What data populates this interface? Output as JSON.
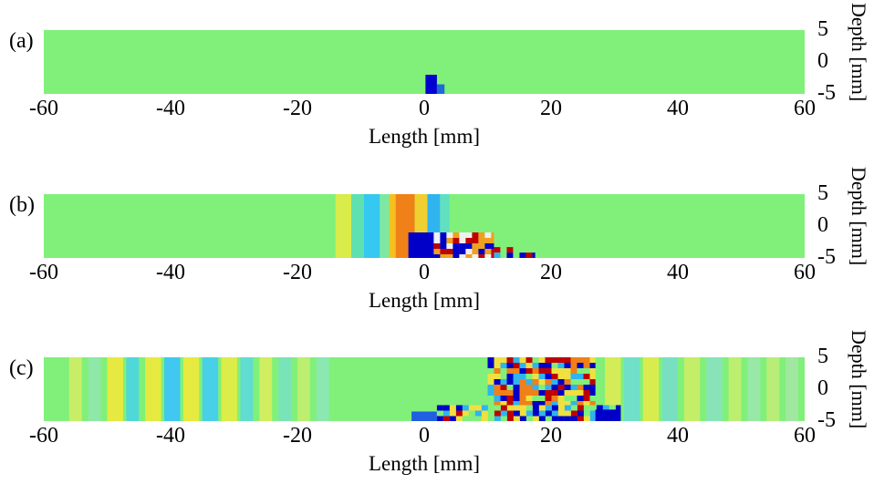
{
  "chart_data": [
    {
      "type": "heatmap",
      "panel_label": "(a)",
      "xlabel": "Length [mm]",
      "ylabel": "Depth [mm]",
      "xlim": [
        -60,
        60
      ],
      "ylim": [
        -5,
        5
      ],
      "xticks": [
        "-60",
        "-40",
        "-20",
        "0",
        "20",
        "40",
        "60"
      ],
      "yticks": [
        "5",
        "0",
        "-5"
      ],
      "colormap": "jet",
      "background_color": "#80f07a",
      "features": [
        {
          "kind": "block",
          "x0": 0.2,
          "x1": 2.0,
          "y0": -5,
          "y1": -2,
          "color": "#0000d0"
        },
        {
          "kind": "block",
          "x0": 2.0,
          "x1": 3.2,
          "y0": -5,
          "y1": -3.5,
          "color": "#1e6ad8"
        }
      ]
    },
    {
      "type": "heatmap",
      "panel_label": "(b)",
      "xlabel": "Length [mm]",
      "ylabel": "Depth [mm]",
      "xlim": [
        -60,
        60
      ],
      "ylim": [
        -5,
        5
      ],
      "xticks": [
        "-60",
        "-40",
        "-20",
        "0",
        "20",
        "40",
        "60"
      ],
      "yticks": [
        "5",
        "0",
        "-5"
      ],
      "colormap": "jet",
      "background_color": "#80f07a",
      "bands": [
        {
          "x0": -14,
          "x1": -11.5,
          "color": "#d9ec4a"
        },
        {
          "x0": -11.5,
          "x1": -9.5,
          "color": "#5fe0b0"
        },
        {
          "x0": -9.5,
          "x1": -7,
          "color": "#35c8f0"
        },
        {
          "x0": -7,
          "x1": -5.5,
          "color": "#7fe8a0"
        },
        {
          "x0": -5.5,
          "x1": -4.5,
          "color": "#f6c020"
        },
        {
          "x0": -4.5,
          "x1": -1.5,
          "color": "#f08018"
        },
        {
          "x0": -1.5,
          "x1": 0.5,
          "color": "#f0d030"
        },
        {
          "x0": 0.5,
          "x1": 2.5,
          "color": "#2fb4f0"
        },
        {
          "x0": 2.5,
          "x1": 4,
          "color": "#60e0c0"
        }
      ],
      "features": [
        {
          "kind": "block",
          "x0": -2.5,
          "x1": 1.5,
          "y0": -5,
          "y1": -1,
          "color": "#0000c8"
        },
        {
          "kind": "checker",
          "x0": 1.5,
          "x1": 11,
          "y0": -5,
          "y1": -1,
          "colors": [
            "#c00000",
            "#0000c8",
            "#f0f0f0",
            "#f0a020"
          ]
        },
        {
          "kind": "checker",
          "x0": 11,
          "x1": 17.5,
          "y0": -5,
          "y1": -3.3,
          "colors": [
            "#0000c8",
            "#80f07a",
            "#c00000",
            "#2fb4f0"
          ]
        }
      ]
    },
    {
      "type": "heatmap",
      "panel_label": "(c)",
      "xlabel": "Length [mm]",
      "ylabel": "Depth [mm]",
      "xlim": [
        -60,
        60
      ],
      "ylim": [
        -5,
        5
      ],
      "xticks": [
        "-60",
        "-40",
        "-20",
        "0",
        "20",
        "40",
        "60"
      ],
      "yticks": [
        "5",
        "0",
        "-5"
      ],
      "colormap": "jet",
      "background_color": "#80f07a",
      "bands": [
        {
          "x0": -56,
          "x1": -54,
          "color": "#c8ee68"
        },
        {
          "x0": -53,
          "x1": -51,
          "color": "#8ee8a8"
        },
        {
          "x0": -50,
          "x1": -47.5,
          "color": "#e6ea40"
        },
        {
          "x0": -47,
          "x1": -45,
          "color": "#50d8d8"
        },
        {
          "x0": -44,
          "x1": -41.5,
          "color": "#e6ea40"
        },
        {
          "x0": -41,
          "x1": -38.5,
          "color": "#40c8f0"
        },
        {
          "x0": -38,
          "x1": -35.5,
          "color": "#e6ea40"
        },
        {
          "x0": -35,
          "x1": -32.5,
          "color": "#48d0e8"
        },
        {
          "x0": -32,
          "x1": -29.5,
          "color": "#dcec48"
        },
        {
          "x0": -29,
          "x1": -27,
          "color": "#60dcd0"
        },
        {
          "x0": -26,
          "x1": -24,
          "color": "#cfee60"
        },
        {
          "x0": -23,
          "x1": -21,
          "color": "#78e4b8"
        },
        {
          "x0": -20,
          "x1": -18,
          "color": "#bcee70"
        },
        {
          "x0": -17,
          "x1": -15,
          "color": "#8ae8b0"
        },
        {
          "x0": 28.5,
          "x1": 31,
          "color": "#d4ec58"
        },
        {
          "x0": 31.5,
          "x1": 34,
          "color": "#70e0c8"
        },
        {
          "x0": 34.5,
          "x1": 37,
          "color": "#d8ec50"
        },
        {
          "x0": 37.5,
          "x1": 40,
          "color": "#78e0c0"
        },
        {
          "x0": 41,
          "x1": 43.5,
          "color": "#c4ee68"
        },
        {
          "x0": 44.5,
          "x1": 47,
          "color": "#88e4b8"
        },
        {
          "x0": 48,
          "x1": 50,
          "color": "#bcee70"
        },
        {
          "x0": 51,
          "x1": 53,
          "color": "#98e8a8"
        },
        {
          "x0": 54,
          "x1": 56,
          "color": "#b8ee78"
        },
        {
          "x0": 57,
          "x1": 59,
          "color": "#a0e8a0"
        }
      ],
      "features": [
        {
          "kind": "block",
          "x0": -2,
          "x1": 2,
          "y0": -5,
          "y1": -3.5,
          "color": "#2060e0"
        },
        {
          "kind": "checker",
          "x0": 2,
          "x1": 31,
          "y0": -5,
          "y1": -2.5,
          "colors": [
            "#c00000",
            "#0000c8",
            "#f0e040",
            "#80f07a",
            "#2fb4f0"
          ]
        },
        {
          "kind": "checker",
          "x0": 10,
          "x1": 27,
          "y0": -2.5,
          "y1": 5,
          "colors": [
            "#c00000",
            "#0000c8",
            "#f0e040",
            "#80f07a",
            "#f08018",
            "#2fb4f0"
          ]
        },
        {
          "kind": "block",
          "x0": 27,
          "x1": 31,
          "y0": -5,
          "y1": -3.2,
          "color": "#0000c8"
        }
      ]
    }
  ]
}
